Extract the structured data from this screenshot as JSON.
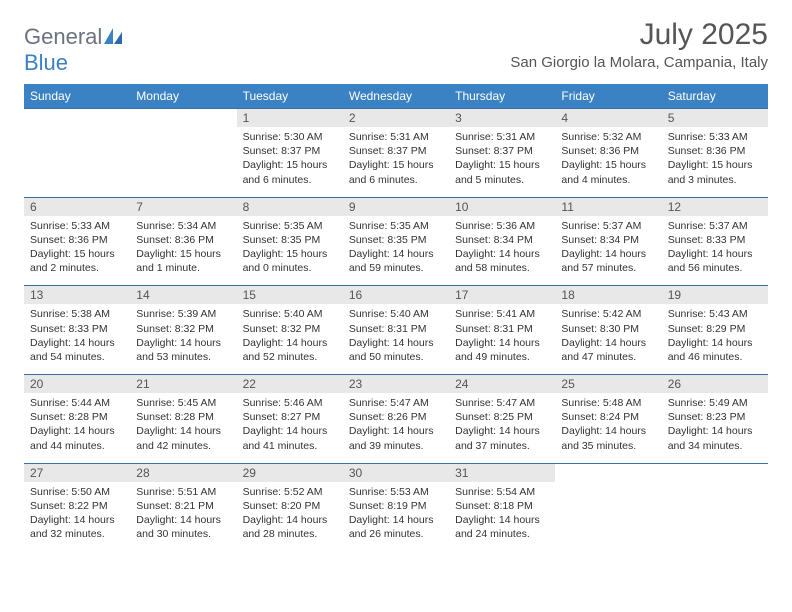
{
  "logo": {
    "text1": "General",
    "text2": "Blue"
  },
  "title": "July 2025",
  "location": "San Giorgio la Molara, Campania, Italy",
  "colors": {
    "header_bg": "#3b82c4",
    "header_text": "#ffffff",
    "daynum_bg": "#e8e8e8",
    "border": "#3b6fa0",
    "text": "#333333",
    "logo_gray": "#6b7280",
    "logo_blue": "#3b82c4"
  },
  "day_headers": [
    "Sunday",
    "Monday",
    "Tuesday",
    "Wednesday",
    "Thursday",
    "Friday",
    "Saturday"
  ],
  "weeks": [
    [
      null,
      null,
      {
        "n": "1",
        "sr": "5:30 AM",
        "ss": "8:37 PM",
        "dl": "15 hours and 6 minutes."
      },
      {
        "n": "2",
        "sr": "5:31 AM",
        "ss": "8:37 PM",
        "dl": "15 hours and 6 minutes."
      },
      {
        "n": "3",
        "sr": "5:31 AM",
        "ss": "8:37 PM",
        "dl": "15 hours and 5 minutes."
      },
      {
        "n": "4",
        "sr": "5:32 AM",
        "ss": "8:36 PM",
        "dl": "15 hours and 4 minutes."
      },
      {
        "n": "5",
        "sr": "5:33 AM",
        "ss": "8:36 PM",
        "dl": "15 hours and 3 minutes."
      }
    ],
    [
      {
        "n": "6",
        "sr": "5:33 AM",
        "ss": "8:36 PM",
        "dl": "15 hours and 2 minutes."
      },
      {
        "n": "7",
        "sr": "5:34 AM",
        "ss": "8:36 PM",
        "dl": "15 hours and 1 minute."
      },
      {
        "n": "8",
        "sr": "5:35 AM",
        "ss": "8:35 PM",
        "dl": "15 hours and 0 minutes."
      },
      {
        "n": "9",
        "sr": "5:35 AM",
        "ss": "8:35 PM",
        "dl": "14 hours and 59 minutes."
      },
      {
        "n": "10",
        "sr": "5:36 AM",
        "ss": "8:34 PM",
        "dl": "14 hours and 58 minutes."
      },
      {
        "n": "11",
        "sr": "5:37 AM",
        "ss": "8:34 PM",
        "dl": "14 hours and 57 minutes."
      },
      {
        "n": "12",
        "sr": "5:37 AM",
        "ss": "8:33 PM",
        "dl": "14 hours and 56 minutes."
      }
    ],
    [
      {
        "n": "13",
        "sr": "5:38 AM",
        "ss": "8:33 PM",
        "dl": "14 hours and 54 minutes."
      },
      {
        "n": "14",
        "sr": "5:39 AM",
        "ss": "8:32 PM",
        "dl": "14 hours and 53 minutes."
      },
      {
        "n": "15",
        "sr": "5:40 AM",
        "ss": "8:32 PM",
        "dl": "14 hours and 52 minutes."
      },
      {
        "n": "16",
        "sr": "5:40 AM",
        "ss": "8:31 PM",
        "dl": "14 hours and 50 minutes."
      },
      {
        "n": "17",
        "sr": "5:41 AM",
        "ss": "8:31 PM",
        "dl": "14 hours and 49 minutes."
      },
      {
        "n": "18",
        "sr": "5:42 AM",
        "ss": "8:30 PM",
        "dl": "14 hours and 47 minutes."
      },
      {
        "n": "19",
        "sr": "5:43 AM",
        "ss": "8:29 PM",
        "dl": "14 hours and 46 minutes."
      }
    ],
    [
      {
        "n": "20",
        "sr": "5:44 AM",
        "ss": "8:28 PM",
        "dl": "14 hours and 44 minutes."
      },
      {
        "n": "21",
        "sr": "5:45 AM",
        "ss": "8:28 PM",
        "dl": "14 hours and 42 minutes."
      },
      {
        "n": "22",
        "sr": "5:46 AM",
        "ss": "8:27 PM",
        "dl": "14 hours and 41 minutes."
      },
      {
        "n": "23",
        "sr": "5:47 AM",
        "ss": "8:26 PM",
        "dl": "14 hours and 39 minutes."
      },
      {
        "n": "24",
        "sr": "5:47 AM",
        "ss": "8:25 PM",
        "dl": "14 hours and 37 minutes."
      },
      {
        "n": "25",
        "sr": "5:48 AM",
        "ss": "8:24 PM",
        "dl": "14 hours and 35 minutes."
      },
      {
        "n": "26",
        "sr": "5:49 AM",
        "ss": "8:23 PM",
        "dl": "14 hours and 34 minutes."
      }
    ],
    [
      {
        "n": "27",
        "sr": "5:50 AM",
        "ss": "8:22 PM",
        "dl": "14 hours and 32 minutes."
      },
      {
        "n": "28",
        "sr": "5:51 AM",
        "ss": "8:21 PM",
        "dl": "14 hours and 30 minutes."
      },
      {
        "n": "29",
        "sr": "5:52 AM",
        "ss": "8:20 PM",
        "dl": "14 hours and 28 minutes."
      },
      {
        "n": "30",
        "sr": "5:53 AM",
        "ss": "8:19 PM",
        "dl": "14 hours and 26 minutes."
      },
      {
        "n": "31",
        "sr": "5:54 AM",
        "ss": "8:18 PM",
        "dl": "14 hours and 24 minutes."
      },
      null,
      null
    ]
  ],
  "labels": {
    "sunrise": "Sunrise:",
    "sunset": "Sunset:",
    "daylight": "Daylight:"
  }
}
